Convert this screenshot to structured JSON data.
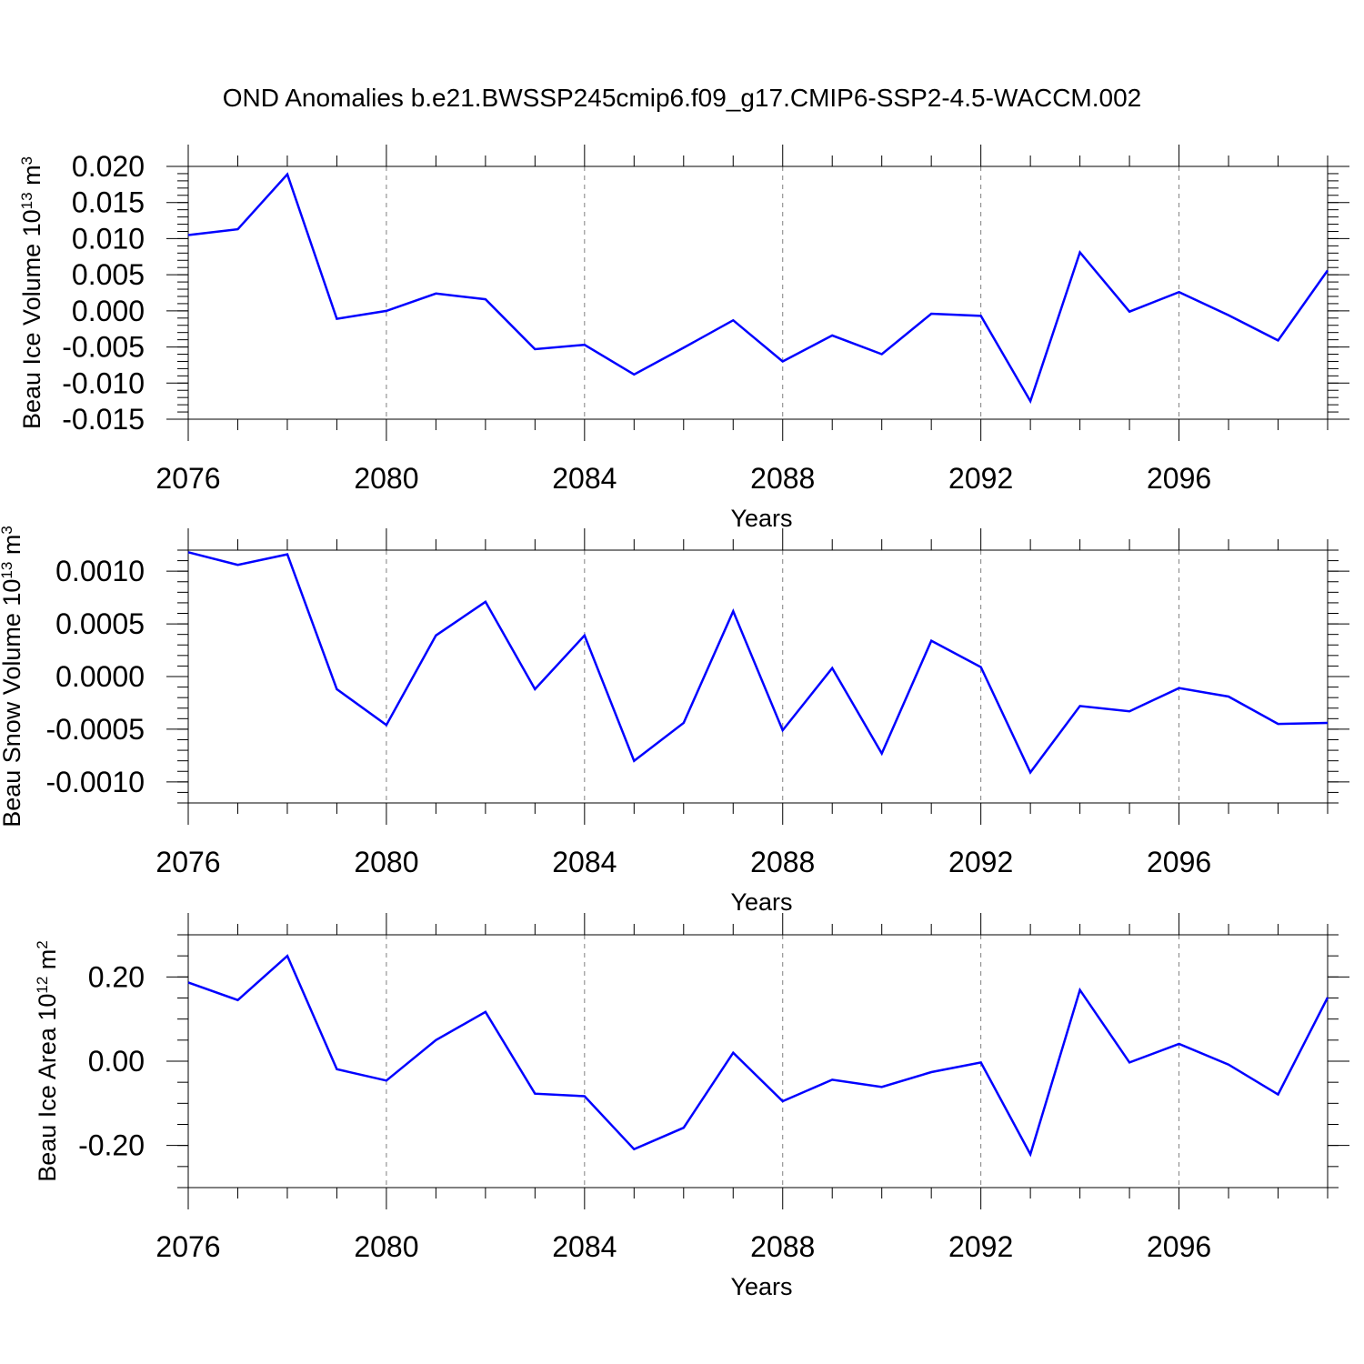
{
  "figure": {
    "title": "OND Anomalies b.e21.BWSSP245cmip6.f09_g17.CMIP6-SSP2-4.5-WACCM.002"
  },
  "colors": {
    "line": "#0000ff",
    "axes": "#000000",
    "grid": "#808080",
    "background": "#ffffff"
  },
  "chart_data": [
    {
      "type": "line",
      "xlabel": "Years",
      "ylabel_text": "Beau Ice Volume 10",
      "ylabel_sup": "13",
      "ylabel_unit": "m",
      "ylabel_unit_sup": "3",
      "xlim": [
        2076,
        2099
      ],
      "ylim": [
        -0.015,
        0.02
      ],
      "x_ticks": [
        2076,
        2080,
        2084,
        2088,
        2092,
        2096
      ],
      "y_ticks": [
        "0.020",
        "0.015",
        "0.010",
        "0.005",
        "0.000",
        "-0.005",
        "-0.010",
        "-0.015"
      ],
      "y_tick_values": [
        0.02,
        0.015,
        0.01,
        0.005,
        0.0,
        -0.005,
        -0.01,
        -0.015
      ],
      "y_minor_step": 0.001,
      "grid": "vertical dashed at major x ticks",
      "series": [
        {
          "x": [
            2076,
            2077,
            2078,
            2079,
            2080,
            2081,
            2082,
            2083,
            2084,
            2085,
            2086,
            2087,
            2088,
            2089,
            2090,
            2091,
            2092,
            2093,
            2094,
            2095,
            2096,
            2097,
            2098,
            2099
          ],
          "values": [
            0.0105,
            0.0113,
            0.0189,
            -0.0011,
            0.0,
            0.0024,
            0.0016,
            -0.0053,
            -0.0047,
            -0.0088,
            -0.0051,
            -0.0013,
            -0.007,
            -0.0034,
            -0.006,
            -0.0004,
            -0.0007,
            -0.0125,
            0.0081,
            -0.0001,
            0.0026,
            -0.0006,
            -0.0041,
            0.0056
          ]
        }
      ]
    },
    {
      "type": "line",
      "xlabel": "Years",
      "ylabel_text": "Beau Snow Volume 10",
      "ylabel_sup": "13",
      "ylabel_unit": "m",
      "ylabel_unit_sup": "3",
      "xlim": [
        2076,
        2099
      ],
      "ylim": [
        -0.0012,
        0.0012
      ],
      "x_ticks": [
        2076,
        2080,
        2084,
        2088,
        2092,
        2096
      ],
      "y_ticks": [
        "0.0010",
        "0.0005",
        "0.0000",
        "-0.0005",
        "-0.0010"
      ],
      "y_tick_values": [
        0.001,
        0.0005,
        0.0,
        -0.0005,
        -0.001
      ],
      "y_minor_step": 0.0001,
      "grid": "vertical dashed at major x ticks",
      "series": [
        {
          "x": [
            2076,
            2077,
            2078,
            2079,
            2080,
            2081,
            2082,
            2083,
            2084,
            2085,
            2086,
            2087,
            2088,
            2089,
            2090,
            2091,
            2092,
            2093,
            2094,
            2095,
            2096,
            2097,
            2098,
            2099
          ],
          "values": [
            0.00118,
            0.00106,
            0.00116,
            -0.00012,
            -0.00046,
            0.00039,
            0.00071,
            -0.00012,
            0.00039,
            -0.0008,
            -0.00044,
            0.00062,
            -0.00051,
            8e-05,
            -0.00073,
            0.00034,
            9e-05,
            -0.00091,
            -0.00028,
            -0.00033,
            -0.00011,
            -0.00019,
            -0.00045,
            -0.00044
          ]
        }
      ]
    },
    {
      "type": "line",
      "xlabel": "Years",
      "ylabel_text": "Beau Ice Area 10",
      "ylabel_sup": "12",
      "ylabel_unit": "m",
      "ylabel_unit_sup": "2",
      "xlim": [
        2076,
        2099
      ],
      "ylim": [
        -0.3,
        0.3
      ],
      "x_ticks": [
        2076,
        2080,
        2084,
        2088,
        2092,
        2096
      ],
      "y_ticks": [
        "0.20",
        "0.00",
        "-0.20"
      ],
      "y_tick_values": [
        0.2,
        0.0,
        -0.2
      ],
      "y_minor_step": 0.05,
      "grid": "vertical dashed at major x ticks",
      "series": [
        {
          "x": [
            2076,
            2077,
            2078,
            2079,
            2080,
            2081,
            2082,
            2083,
            2084,
            2085,
            2086,
            2087,
            2088,
            2089,
            2090,
            2091,
            2092,
            2093,
            2094,
            2095,
            2096,
            2097,
            2098,
            2099
          ],
          "values": [
            0.187,
            0.145,
            0.25,
            -0.019,
            -0.046,
            0.05,
            0.117,
            -0.077,
            -0.083,
            -0.209,
            -0.158,
            0.02,
            -0.095,
            -0.044,
            -0.061,
            -0.026,
            -0.003,
            -0.221,
            0.169,
            -0.003,
            0.041,
            -0.008,
            -0.079,
            0.151
          ]
        }
      ]
    }
  ]
}
